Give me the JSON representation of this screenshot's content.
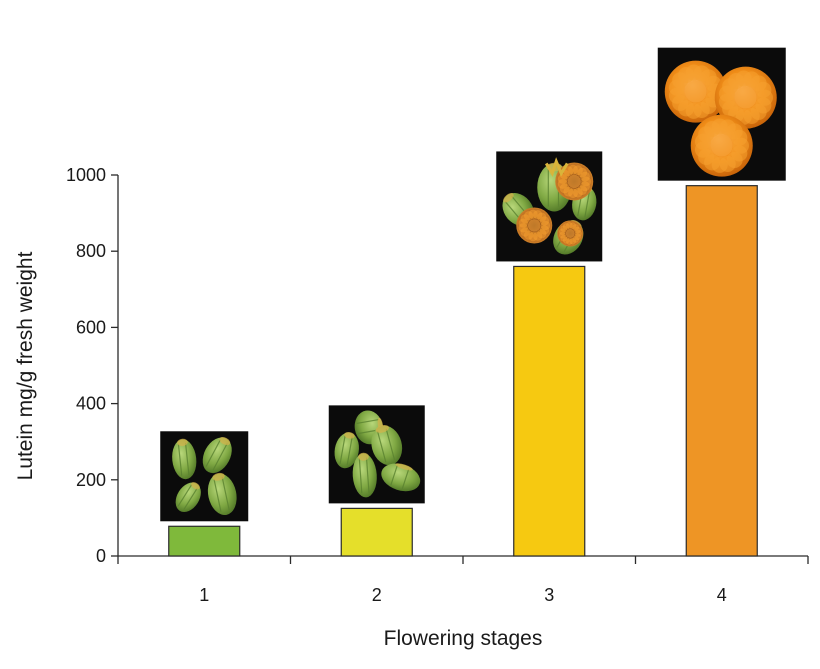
{
  "chart_data": {
    "type": "bar",
    "title": "",
    "xlabel": "Flowering stages",
    "ylabel": "Lutein mg/g fresh weight",
    "categories": [
      "1",
      "2",
      "3",
      "4"
    ],
    "values": [
      78,
      125,
      760,
      972
    ],
    "colors": [
      "#7fb93b",
      "#e5df2a",
      "#f6c911",
      "#ee9525"
    ],
    "ylim": [
      0,
      1000
    ],
    "yticks": [
      0,
      200,
      400,
      600,
      800,
      1000
    ],
    "ytick_labels": [
      "0",
      "200",
      "400",
      "600",
      "800",
      "1000"
    ],
    "grid": false,
    "legend": "none",
    "bar_images": [
      "green-buds-photo",
      "swelling-buds-photo",
      "opening-flowers-photo",
      "full-bloom-marigolds-photo"
    ]
  }
}
